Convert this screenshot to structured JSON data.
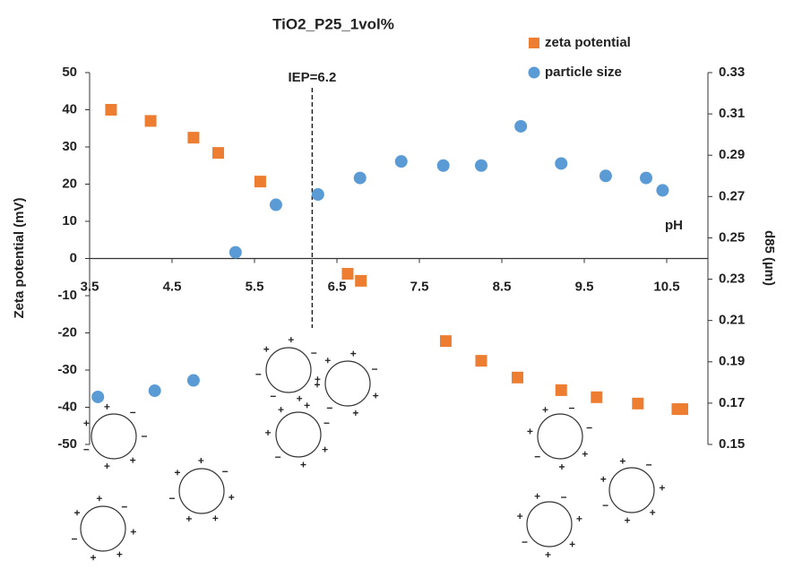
{
  "chart_data": {
    "type": "scatter",
    "title": "TiO2_P25_1vol%",
    "xlabel": "pH",
    "ylabel": "Zeta potential (mV)",
    "y2label": "d85 (µm)",
    "xlim": [
      3.5,
      11
    ],
    "xticks": [
      3.5,
      4.5,
      5.5,
      6.5,
      7.5,
      8.5,
      9.5,
      10.5
    ],
    "ylim": [
      -50,
      50
    ],
    "yticks": [
      -50,
      -40,
      -30,
      -20,
      -10,
      0,
      10,
      20,
      30,
      40,
      50
    ],
    "y2lim": [
      0.15,
      0.33
    ],
    "y2ticks": [
      0.15,
      0.17,
      0.19,
      0.21,
      0.23,
      0.25,
      0.27,
      0.29,
      0.31,
      0.33
    ],
    "legend": "top-right",
    "annotations": [
      {
        "text": "IEP=6.2",
        "x": 6.2
      }
    ],
    "series": [
      {
        "name": "zeta potential",
        "color": "#ed7d31",
        "marker": "square",
        "x": [
          3.76,
          4.24,
          4.76,
          5.06,
          5.57,
          6.63,
          6.79,
          7.82,
          8.25,
          8.69,
          9.22,
          9.65,
          10.15,
          10.63,
          10.69
        ],
        "values": [
          40,
          37,
          32.5,
          28.4,
          20.7,
          -4.1,
          -6,
          -22.2,
          -27.5,
          -32,
          -35.4,
          -37.3,
          -39,
          -40.5,
          -40.5
        ]
      },
      {
        "name": "particle size",
        "color": "#5b9bd5",
        "marker": "circle",
        "axis": "y2",
        "x": [
          3.6,
          4.29,
          4.76,
          5.27,
          5.76,
          6.27,
          6.78,
          7.28,
          7.79,
          8.25,
          8.73,
          9.22,
          9.76,
          10.25,
          10.45
        ],
        "values": [
          0.173,
          0.176,
          0.181,
          0.243,
          0.266,
          0.271,
          0.279,
          0.287,
          0.285,
          0.285,
          0.304,
          0.286,
          0.28,
          0.279,
          0.273
        ]
      }
    ]
  }
}
